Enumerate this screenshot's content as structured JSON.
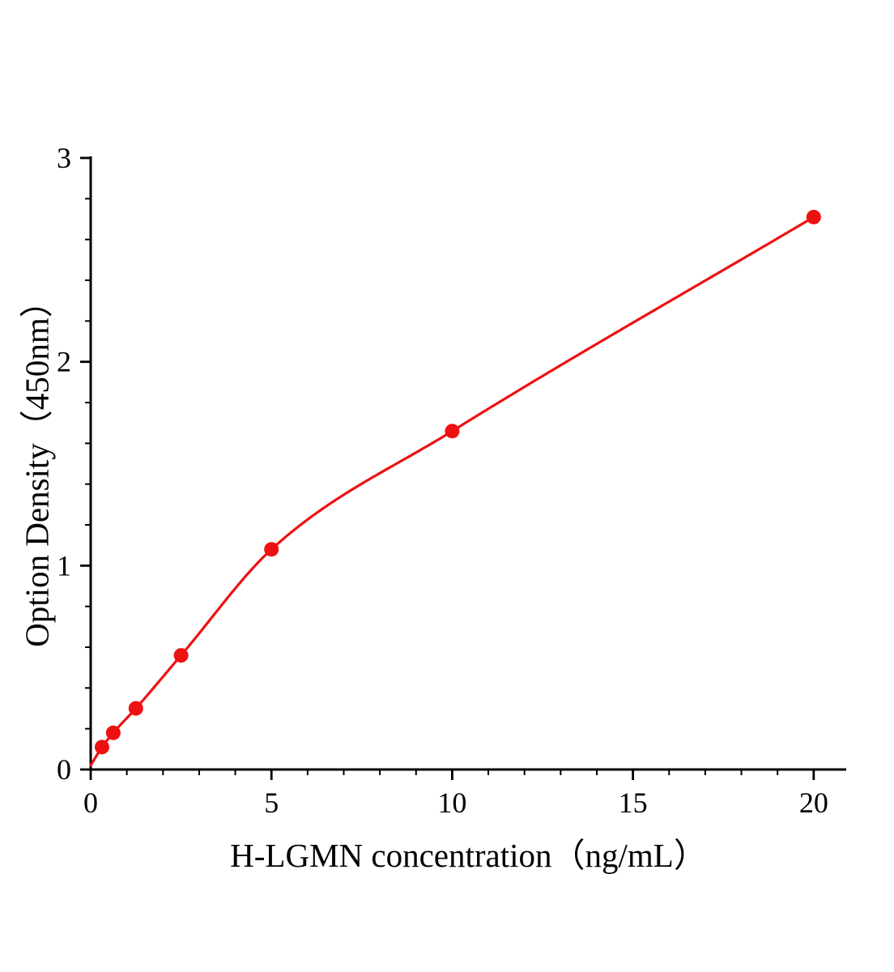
{
  "chart_data": {
    "type": "scatter",
    "title": "",
    "xlabel": "H-LGMN concentration（ng/mL）",
    "ylabel": "Option Density（450nm）",
    "series": [
      {
        "x": [
          0.3125,
          0.625,
          1.25,
          2.5,
          5,
          10,
          20
        ],
        "y": [
          0.11,
          0.18,
          0.3,
          0.56,
          1.08,
          1.66,
          2.71
        ]
      }
    ],
    "curve_origin": [
      0,
      0.02
    ],
    "xlim": [
      0,
      20.9
    ],
    "ylim": [
      0,
      3
    ],
    "x_ticks": [
      0,
      5,
      10,
      15,
      20
    ],
    "y_ticks": [
      0,
      1,
      2,
      3
    ],
    "x_minor_step": 1,
    "y_minor_step": 0.2,
    "grid": false,
    "legend_position": "none",
    "line_color": "#ee1111",
    "marker_color": "#ee1111",
    "axis_color": "#000000"
  }
}
